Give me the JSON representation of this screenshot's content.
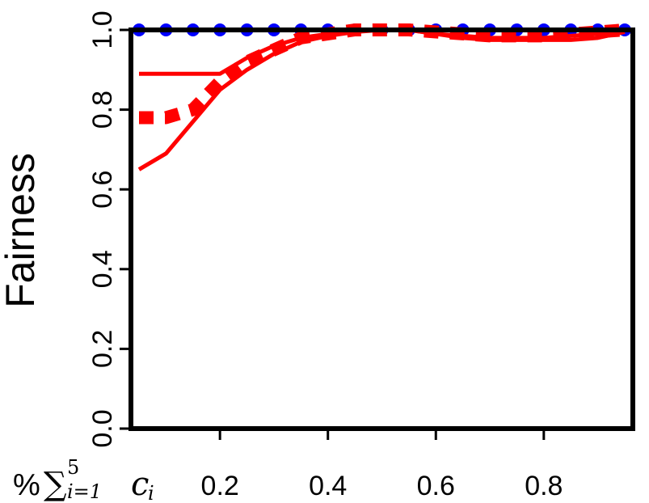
{
  "chart_data": {
    "type": "line",
    "ylabel": "Fairness",
    "xlabel": {
      "prefix": "%",
      "sum": "∑",
      "upper": "5",
      "lower": "i=1",
      "term": "c",
      "term_sub": "i"
    },
    "xlim": [
      0.05,
      0.95
    ],
    "ylim": [
      0.0,
      1.0
    ],
    "xticks": [
      0.2,
      0.4,
      0.6,
      0.8
    ],
    "xtick_labels": [
      "0.2",
      "0.4",
      "0.6",
      "0.8"
    ],
    "yticks": [
      0.0,
      0.2,
      0.4,
      0.6,
      0.8,
      1.0
    ],
    "ytick_labels": [
      "0.0",
      "0.2",
      "0.4",
      "0.6",
      "0.8",
      "1.0"
    ],
    "grid": false,
    "legend": "none",
    "series": [
      {
        "color": "#0000ff",
        "style": "solid-dots",
        "x": [
          0.05,
          0.1,
          0.15,
          0.2,
          0.25,
          0.3,
          0.35,
          0.4,
          0.45,
          0.5,
          0.55,
          0.6,
          0.65,
          0.7,
          0.75,
          0.8,
          0.85,
          0.9,
          0.95
        ],
        "y": [
          1.0,
          1.0,
          1.0,
          1.0,
          1.0,
          1.0,
          1.0,
          1.0,
          1.0,
          1.0,
          1.0,
          1.0,
          1.0,
          1.0,
          1.0,
          1.0,
          1.0,
          1.0,
          1.0
        ]
      },
      {
        "color": "#ff0000",
        "style": "solid",
        "x": [
          0.05,
          0.1,
          0.15,
          0.2,
          0.25,
          0.3,
          0.35,
          0.4,
          0.45,
          0.5,
          0.55,
          0.6,
          0.65,
          0.7,
          0.75,
          0.8,
          0.85,
          0.9,
          0.95
        ],
        "y": [
          0.89,
          0.89,
          0.89,
          0.89,
          0.93,
          0.96,
          0.98,
          0.99,
          1.0,
          1.0,
          1.0,
          0.99,
          0.985,
          0.98,
          0.98,
          0.98,
          0.985,
          0.99,
          1.0
        ]
      },
      {
        "color": "#ff0000",
        "style": "dotted",
        "x": [
          0.05,
          0.1,
          0.15,
          0.2,
          0.25,
          0.3,
          0.35,
          0.4,
          0.45,
          0.5,
          0.55,
          0.6,
          0.65,
          0.7,
          0.75,
          0.8,
          0.85,
          0.9,
          0.95
        ],
        "y": [
          0.78,
          0.78,
          0.8,
          0.87,
          0.92,
          0.95,
          0.98,
          0.99,
          1.0,
          1.0,
          1.0,
          0.995,
          0.99,
          0.985,
          0.985,
          0.985,
          0.99,
          0.995,
          1.0
        ]
      },
      {
        "color": "#ff0000",
        "style": "solid",
        "x": [
          0.05,
          0.1,
          0.15,
          0.2,
          0.25,
          0.3,
          0.35,
          0.4,
          0.45,
          0.5,
          0.55,
          0.6,
          0.65,
          0.7,
          0.75,
          0.8,
          0.85,
          0.9,
          0.95
        ],
        "y": [
          0.65,
          0.69,
          0.77,
          0.85,
          0.9,
          0.94,
          0.97,
          0.985,
          0.995,
          1.0,
          1.0,
          0.99,
          0.98,
          0.975,
          0.975,
          0.975,
          0.975,
          0.98,
          0.995
        ]
      }
    ]
  }
}
